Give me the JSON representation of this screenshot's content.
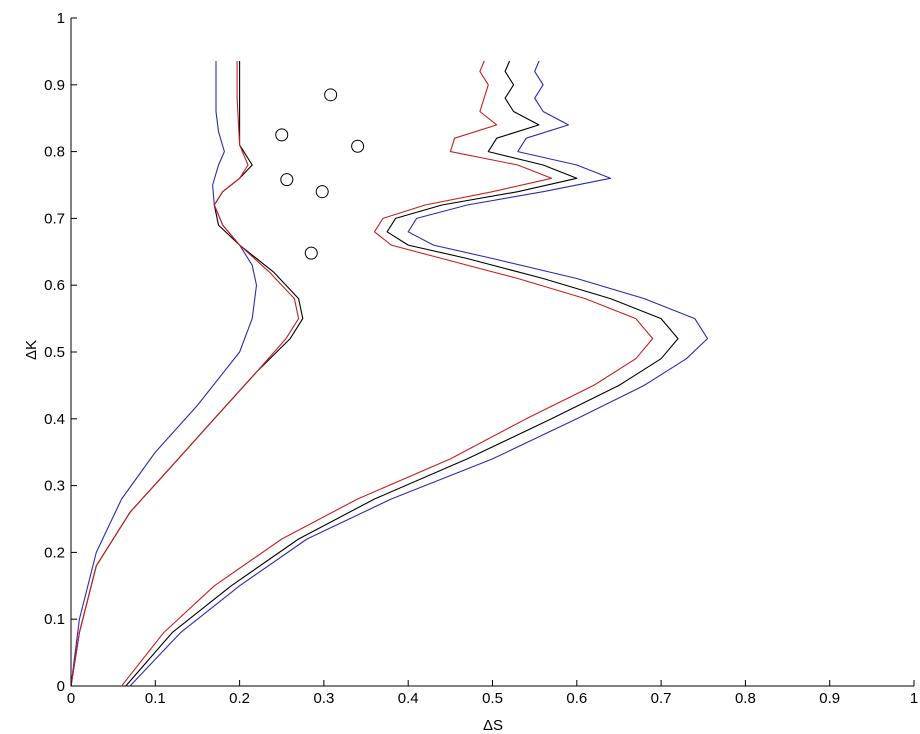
{
  "chart_data": {
    "type": "line",
    "title": "",
    "xlabel": "ΔS",
    "ylabel": "ΔK",
    "xlim": [
      0,
      1
    ],
    "ylim": [
      0,
      1
    ],
    "grid": false,
    "legend": "none",
    "xticks": [
      0,
      0.1,
      0.2,
      0.3,
      0.4,
      0.5,
      0.6,
      0.7,
      0.8,
      0.9,
      1
    ],
    "xtick_labels": [
      "0",
      "0.1",
      "0.2",
      "0.3",
      "0.4",
      "0.5",
      "0.6",
      "0.7",
      "0.8",
      "0.9",
      "1"
    ],
    "yticks": [
      0,
      0.1,
      0.2,
      0.3,
      0.4,
      0.5,
      0.6,
      0.7,
      0.8,
      0.9,
      1
    ],
    "ytick_labels": [
      "0",
      "0.1",
      "0.2",
      "0.3",
      "0.4",
      "0.5",
      "0.6",
      "0.7",
      "0.8",
      "0.9",
      "1"
    ],
    "series": [
      {
        "color": "#2b2bb3",
        "x": [
          0.0,
          0.01,
          0.03,
          0.06,
          0.1,
          0.15,
          0.2,
          0.215,
          0.22,
          0.215,
          0.2,
          0.18,
          0.17,
          0.168,
          0.175,
          0.182,
          0.175,
          0.172,
          0.172,
          0.172
        ],
        "y": [
          0.0,
          0.1,
          0.2,
          0.28,
          0.35,
          0.42,
          0.5,
          0.55,
          0.6,
          0.63,
          0.66,
          0.69,
          0.72,
          0.75,
          0.78,
          0.8,
          0.83,
          0.86,
          0.9,
          0.935
        ]
      },
      {
        "color": "#000000",
        "x": [
          0.0,
          0.01,
          0.03,
          0.07,
          0.12,
          0.17,
          0.22,
          0.26,
          0.275,
          0.27,
          0.24,
          0.2,
          0.175,
          0.17,
          0.18,
          0.2,
          0.215,
          0.2,
          0.2,
          0.2
        ],
        "y": [
          0.0,
          0.08,
          0.18,
          0.26,
          0.33,
          0.4,
          0.47,
          0.52,
          0.55,
          0.58,
          0.62,
          0.66,
          0.69,
          0.72,
          0.74,
          0.76,
          0.78,
          0.81,
          0.88,
          0.935
        ]
      },
      {
        "color": "#c82020",
        "x": [
          0.0,
          0.01,
          0.03,
          0.07,
          0.12,
          0.17,
          0.22,
          0.255,
          0.27,
          0.265,
          0.235,
          0.2,
          0.18,
          0.17,
          0.18,
          0.2,
          0.21,
          0.2,
          0.197,
          0.197
        ],
        "y": [
          0.0,
          0.08,
          0.18,
          0.26,
          0.33,
          0.4,
          0.47,
          0.52,
          0.55,
          0.58,
          0.62,
          0.66,
          0.69,
          0.72,
          0.74,
          0.76,
          0.78,
          0.81,
          0.88,
          0.935
        ]
      },
      {
        "color": "#2b2bb3",
        "x": [
          0.07,
          0.13,
          0.2,
          0.28,
          0.38,
          0.5,
          0.6,
          0.68,
          0.73,
          0.755,
          0.74,
          0.68,
          0.6,
          0.5,
          0.43,
          0.4,
          0.41,
          0.47,
          0.56,
          0.64,
          0.6,
          0.53,
          0.54,
          0.59,
          0.56,
          0.55,
          0.56,
          0.55,
          0.555
        ],
        "y": [
          0.0,
          0.08,
          0.15,
          0.22,
          0.28,
          0.34,
          0.4,
          0.45,
          0.49,
          0.52,
          0.55,
          0.58,
          0.61,
          0.64,
          0.66,
          0.68,
          0.7,
          0.72,
          0.74,
          0.76,
          0.78,
          0.8,
          0.82,
          0.84,
          0.86,
          0.88,
          0.9,
          0.92,
          0.935
        ]
      },
      {
        "color": "#000000",
        "x": [
          0.065,
          0.12,
          0.19,
          0.27,
          0.36,
          0.47,
          0.57,
          0.65,
          0.7,
          0.72,
          0.7,
          0.64,
          0.56,
          0.47,
          0.4,
          0.375,
          0.385,
          0.44,
          0.53,
          0.6,
          0.56,
          0.495,
          0.505,
          0.555,
          0.525,
          0.515,
          0.525,
          0.515,
          0.52
        ],
        "y": [
          0.0,
          0.08,
          0.15,
          0.22,
          0.28,
          0.34,
          0.4,
          0.45,
          0.49,
          0.52,
          0.55,
          0.58,
          0.61,
          0.64,
          0.66,
          0.68,
          0.7,
          0.72,
          0.74,
          0.76,
          0.78,
          0.8,
          0.82,
          0.84,
          0.86,
          0.88,
          0.9,
          0.92,
          0.935
        ]
      },
      {
        "color": "#c82020",
        "x": [
          0.06,
          0.11,
          0.17,
          0.25,
          0.34,
          0.45,
          0.54,
          0.62,
          0.67,
          0.69,
          0.67,
          0.61,
          0.53,
          0.44,
          0.38,
          0.36,
          0.37,
          0.42,
          0.5,
          0.57,
          0.53,
          0.45,
          0.455,
          0.505,
          0.485,
          0.49,
          0.495,
          0.485,
          0.49
        ],
        "y": [
          0.0,
          0.08,
          0.15,
          0.22,
          0.28,
          0.34,
          0.4,
          0.45,
          0.49,
          0.52,
          0.55,
          0.58,
          0.61,
          0.64,
          0.66,
          0.68,
          0.7,
          0.72,
          0.74,
          0.76,
          0.78,
          0.8,
          0.82,
          0.84,
          0.86,
          0.88,
          0.9,
          0.92,
          0.935
        ]
      }
    ],
    "points": {
      "x": [
        0.308,
        0.25,
        0.34,
        0.256,
        0.298,
        0.285
      ],
      "y": [
        0.885,
        0.825,
        0.808,
        0.758,
        0.74,
        0.648
      ]
    }
  }
}
